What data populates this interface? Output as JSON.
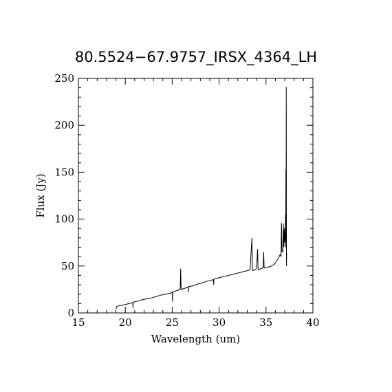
{
  "chart_data": {
    "type": "line",
    "title": "80.5524−67.9757_IRSX_4364_LH",
    "xlabel": "Wavelength (um)",
    "ylabel": "Flux (Jy)",
    "xlim": [
      15,
      40
    ],
    "ylim": [
      0,
      250
    ],
    "xticks": [
      "15",
      "20",
      "25",
      "30",
      "35",
      "40"
    ],
    "yticks": [
      "0",
      "50",
      "100",
      "150",
      "200",
      "250"
    ],
    "grid": false,
    "color": "#000000",
    "series": [
      {
        "x": [
          19.0,
          19.1,
          19.3,
          19.6,
          20.0,
          20.4,
          20.8,
          20.82,
          20.84,
          21.3,
          21.8,
          22.3,
          22.8,
          23.3,
          23.8,
          24.3,
          24.8,
          25.0,
          25.02,
          25.04,
          25.2,
          25.4,
          25.6,
          25.85,
          25.9,
          25.95,
          26.1,
          26.4,
          26.7,
          26.72,
          26.74,
          27.0,
          27.4,
          27.8,
          28.2,
          28.6,
          29.0,
          29.4,
          29.42,
          29.44,
          29.8,
          30.2,
          30.6,
          31.0,
          31.4,
          31.8,
          32.2,
          32.6,
          33.0,
          33.3,
          33.5,
          33.55,
          33.6,
          33.8,
          34.0,
          34.1,
          34.15,
          34.2,
          34.4,
          34.7,
          34.75,
          34.8,
          35.0,
          35.3,
          35.6,
          35.9,
          36.1,
          36.3,
          36.5,
          36.6,
          36.65,
          36.7,
          36.8,
          36.85,
          36.9,
          36.95,
          37.0,
          37.05,
          37.08,
          37.1,
          37.12,
          37.14,
          37.16,
          37.18,
          37.2
        ],
        "y": [
          4,
          7,
          7.5,
          8,
          9,
          10,
          11,
          5,
          11.5,
          12.5,
          14,
          15,
          16,
          17.5,
          19,
          20,
          21,
          22,
          12,
          22.5,
          23,
          23.5,
          24,
          25,
          47,
          25,
          25.5,
          26.5,
          27.5,
          22,
          28,
          28.5,
          29.5,
          31,
          32,
          33.5,
          34.5,
          35.5,
          30,
          36,
          37,
          38,
          39,
          40,
          41,
          42,
          43,
          44,
          45,
          46,
          80,
          46,
          45,
          46,
          47,
          68,
          48,
          46,
          47,
          48,
          65,
          48,
          48,
          49,
          50,
          52,
          55,
          58,
          62,
          60,
          96,
          65,
          66,
          95,
          70,
          90,
          75,
          85,
          105,
          70,
          153,
          95,
          241,
          50,
          64
        ]
      }
    ]
  }
}
